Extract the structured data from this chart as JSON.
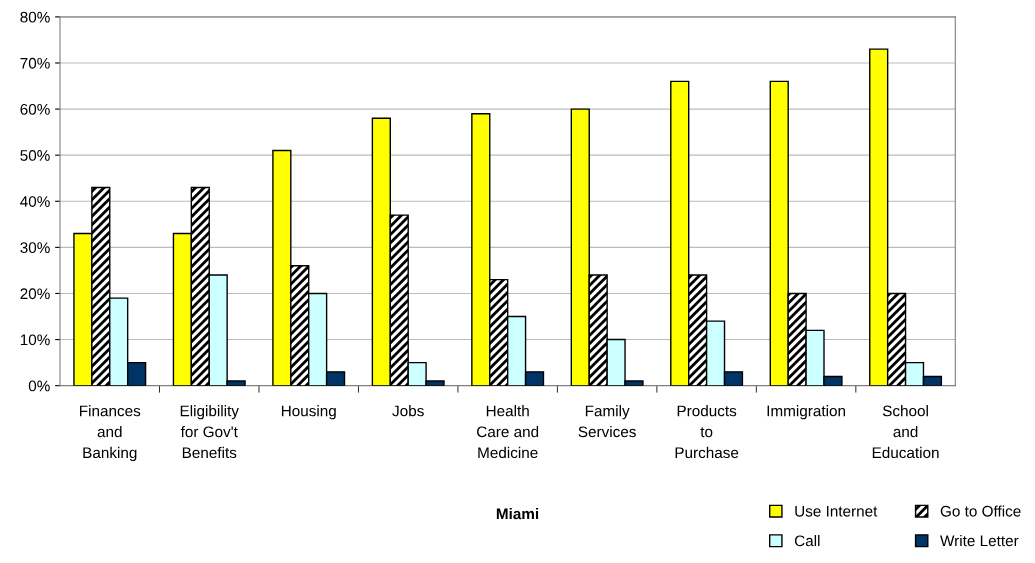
{
  "chart_data": {
    "type": "bar",
    "xlabel": "Miami",
    "categories": [
      "Finances\nand\nBanking",
      "Eligibility\nfor Gov't\nBenefits",
      "Housing",
      "Jobs",
      "Health\nCare and\nMedicine",
      "Family\nServices",
      "Products\nto\nPurchase",
      "Immigration",
      "School\nand\nEducation"
    ],
    "series": [
      {
        "name": "Use Internet",
        "color": "#ffff00",
        "values": [
          33,
          33,
          51,
          58,
          59,
          60,
          66,
          66,
          73
        ]
      },
      {
        "name": "Go to Office",
        "color": "#000000",
        "values": [
          43,
          43,
          26,
          37,
          23,
          24,
          24,
          20,
          20
        ]
      },
      {
        "name": "Call",
        "color": "#ccffff",
        "values": [
          19,
          24,
          20,
          5,
          15,
          10,
          14,
          12,
          5
        ]
      },
      {
        "name": "Write Letter",
        "color": "#003366",
        "values": [
          5,
          1,
          3,
          1,
          3,
          1,
          3,
          2,
          2
        ]
      }
    ],
    "ylim": [
      0,
      80
    ],
    "yticks": [
      {
        "value": 0,
        "label": "0%"
      },
      {
        "value": 10,
        "label": "10%"
      },
      {
        "value": 20,
        "label": "20%"
      },
      {
        "value": 30,
        "label": "30%"
      },
      {
        "value": 40,
        "label": "40%"
      },
      {
        "value": 50,
        "label": "50%"
      },
      {
        "value": 60,
        "label": "60%"
      },
      {
        "value": 70,
        "label": "70%"
      },
      {
        "value": 80,
        "label": "80%"
      }
    ],
    "grid": "y",
    "legend": "bottom right"
  }
}
